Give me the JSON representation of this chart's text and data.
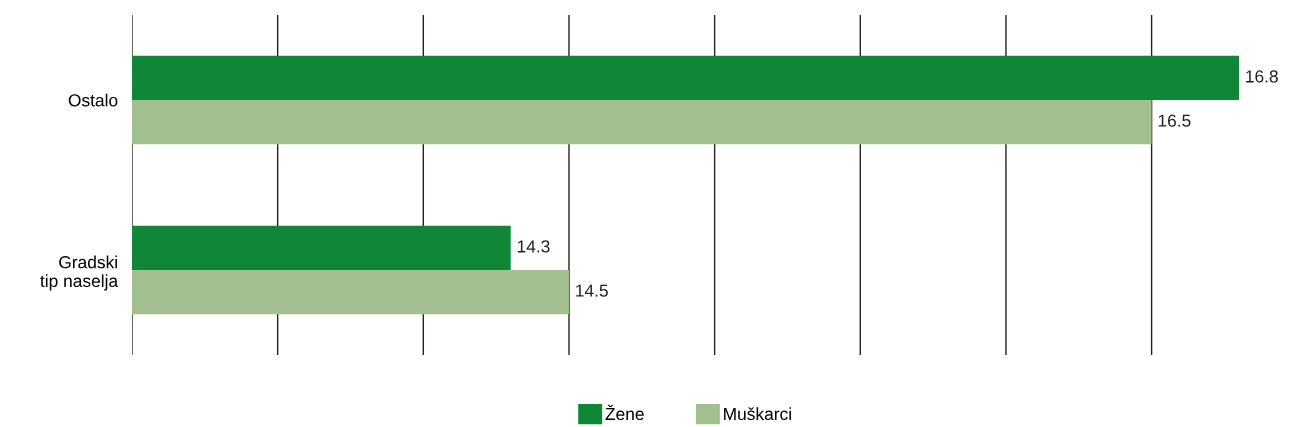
{
  "chart_data": {
    "type": "bar",
    "orientation": "horizontal",
    "categories": [
      "Ostalo",
      "Gradski\ntip naselja"
    ],
    "series": [
      {
        "name": "Žene",
        "color": "#0f8638",
        "values": [
          16.8,
          14.3
        ]
      },
      {
        "name": "Muškarci",
        "color": "#a1bf8f",
        "values": [
          16.5,
          14.5
        ]
      }
    ],
    "xlim": [
      13,
      16.8
    ],
    "xticks": [
      {
        "value": 13,
        "label": null
      },
      {
        "value": 13.5,
        "label": null
      },
      {
        "value": 14,
        "label": null
      },
      {
        "value": 14.5,
        "label": null
      },
      {
        "value": 15,
        "label": null
      },
      {
        "value": 15.5,
        "label": null
      },
      {
        "value": 16,
        "label": null
      },
      {
        "value": 16.5,
        "label": null
      }
    ],
    "tick_labels": "y",
    "grid": "x",
    "data_labels": true,
    "legend": "bottom"
  }
}
